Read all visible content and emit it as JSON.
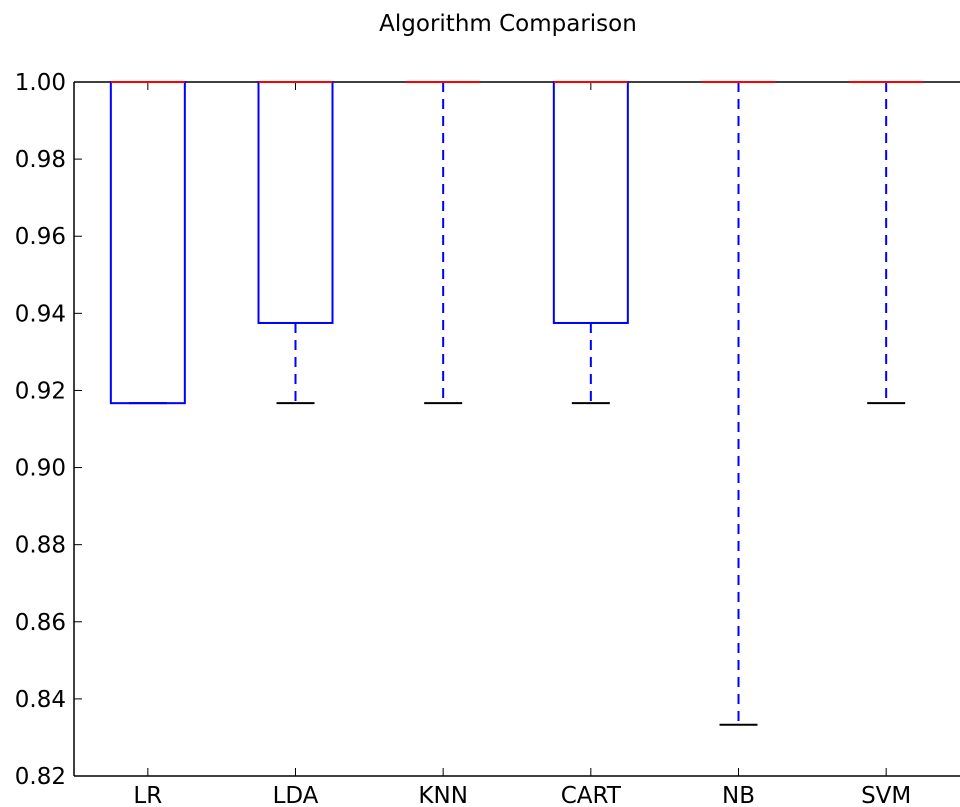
{
  "chart_data": {
    "type": "box",
    "title": "Algorithm Comparison",
    "xlabel": "",
    "ylabel": "",
    "ylim": [
      0.82,
      1.0
    ],
    "yticks": [
      "0.82",
      "0.84",
      "0.86",
      "0.88",
      "0.90",
      "0.92",
      "0.94",
      "0.96",
      "0.98",
      "1.00"
    ],
    "categories": [
      "LR",
      "LDA",
      "KNN",
      "CART",
      "NB",
      "SVM"
    ],
    "boxes": [
      {
        "label": "LR",
        "whisker_low": 0.9167,
        "q1": 0.9167,
        "median": 1.0,
        "q3": 1.0,
        "whisker_high": 1.0
      },
      {
        "label": "LDA",
        "whisker_low": 0.9167,
        "q1": 0.9375,
        "median": 1.0,
        "q3": 1.0,
        "whisker_high": 1.0
      },
      {
        "label": "KNN",
        "whisker_low": 0.9167,
        "q1": 1.0,
        "median": 1.0,
        "q3": 1.0,
        "whisker_high": 1.0
      },
      {
        "label": "CART",
        "whisker_low": 0.9167,
        "q1": 0.9375,
        "median": 1.0,
        "q3": 1.0,
        "whisker_high": 1.0
      },
      {
        "label": "NB",
        "whisker_low": 0.8333,
        "q1": 1.0,
        "median": 1.0,
        "q3": 1.0,
        "whisker_high": 1.0
      },
      {
        "label": "SVM",
        "whisker_low": 0.9167,
        "q1": 1.0,
        "median": 1.0,
        "q3": 1.0,
        "whisker_high": 1.0
      }
    ],
    "grid": false,
    "colors": {
      "box": "#0000ff",
      "median": "#ff0000",
      "cap": "#000000",
      "axis": "#000000"
    }
  }
}
